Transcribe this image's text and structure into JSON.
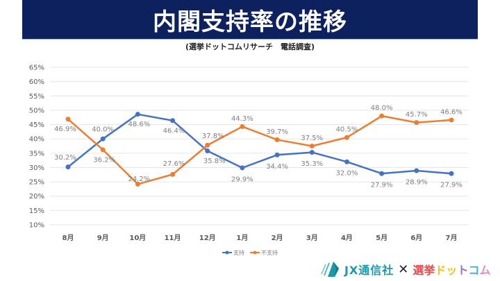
{
  "header": {
    "title": "内閣支持率の推移",
    "subtitle": "(選挙ドットコムリサーチ　電話調査)"
  },
  "chart_data": {
    "type": "line",
    "title": "内閣支持率の推移",
    "subtitle": "(選挙ドットコムリサーチ　電話調査)",
    "xlabel": "",
    "ylabel": "",
    "categories": [
      "8月",
      "9月",
      "10月",
      "11月",
      "12月",
      "1月",
      "2月",
      "3月",
      "4月",
      "5月",
      "6月",
      "7月"
    ],
    "ylim": [
      10,
      65
    ],
    "yticks": [
      10,
      15,
      20,
      25,
      30,
      35,
      40,
      45,
      50,
      55,
      60,
      65
    ],
    "ytick_labels": [
      "10%",
      "15%",
      "20%",
      "25%",
      "30%",
      "35%",
      "40%",
      "45%",
      "50%",
      "55%",
      "60%",
      "65%"
    ],
    "grid": true,
    "legend_position": "bottom",
    "series": [
      {
        "name": "支持",
        "color": "#4472c4",
        "values": [
          30.2,
          40.0,
          48.6,
          46.4,
          35.8,
          29.9,
          34.4,
          35.3,
          32.0,
          27.9,
          28.9,
          27.9
        ],
        "labels": [
          "30.2%",
          "40.0%",
          "48.6%",
          "46.4%",
          "35.8%",
          "29.9%",
          "34.4%",
          "35.3%",
          "32.0%",
          "27.9%",
          "28.9%",
          "27.9%"
        ]
      },
      {
        "name": "不支持",
        "color": "#ed7d31",
        "values": [
          46.9,
          36.2,
          24.2,
          27.6,
          37.8,
          44.3,
          39.7,
          37.5,
          40.5,
          48.0,
          45.7,
          46.6
        ],
        "labels": [
          "46.9%",
          "36.2%",
          "24.2%",
          "27.6%",
          "37.8%",
          "44.3%",
          "39.7%",
          "37.5%",
          "40.5%",
          "48.0%",
          "45.7%",
          "46.6%"
        ]
      }
    ]
  },
  "footer": {
    "logo_jx": "JX通信社",
    "logo_cross": "✕",
    "logo_senkyo": [
      "選挙",
      "ド",
      "ッ",
      "ト",
      "コ",
      "ム"
    ],
    "logo_senkyo_colors": [
      "#e8474c",
      "#f2c316",
      "#f2c316",
      "#9c6fc5",
      "#3fb2d9",
      "#e88ac0"
    ]
  },
  "colors": {
    "banner": "#0c215e",
    "grid": "#e6e6e6",
    "logo_teal": "#1a9aa8"
  }
}
